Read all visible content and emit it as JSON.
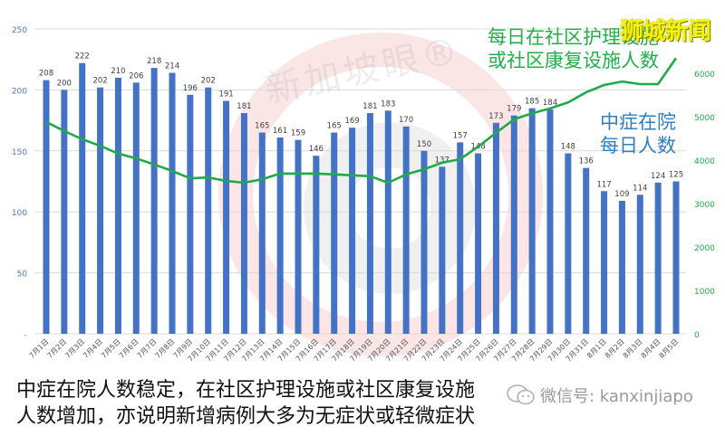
{
  "chart_data": {
    "type": "bar+line",
    "title": "",
    "categories": [
      "7月1日",
      "7月2日",
      "7月3日",
      "7月4日",
      "7月5日",
      "7月6日",
      "7月7日",
      "7月8日",
      "7月9日",
      "7月10日",
      "7月11日",
      "7月12日",
      "7月13日",
      "7月14日",
      "7月15日",
      "7月16日",
      "7月17日",
      "7月18日",
      "7月19日",
      "7月20日",
      "7月21日",
      "7月22日",
      "7月23日",
      "7月24日",
      "7月25日",
      "7月26日",
      "7月27日",
      "7月28日",
      "7月29日",
      "7月30日",
      "7月31日",
      "8月1日",
      "8月2日",
      "8月3日",
      "8月4日",
      "8月5日"
    ],
    "series": [
      {
        "name": "中症在院每日人数",
        "type": "bar",
        "axis": "left",
        "color": "#4472c4",
        "values": [
          208,
          200,
          222,
          202,
          210,
          206,
          218,
          214,
          196,
          202,
          191,
          181,
          165,
          161,
          159,
          146,
          165,
          169,
          181,
          183,
          170,
          150,
          137,
          157,
          148,
          173,
          179,
          185,
          184,
          148,
          136,
          117,
          109,
          114,
          124,
          125
        ],
        "data_labels": true
      },
      {
        "name": "每日在社区护理设施或社区康复设施人数",
        "type": "line",
        "axis": "right",
        "color": "#1faa4a",
        "values": [
          4880,
          4670,
          4480,
          4330,
          4150,
          4040,
          3900,
          3750,
          3580,
          3600,
          3520,
          3480,
          3560,
          3690,
          3690,
          3690,
          3670,
          3650,
          3630,
          3480,
          3670,
          3790,
          3940,
          4020,
          4310,
          4630,
          4940,
          5080,
          5190,
          5330,
          5560,
          5730,
          5810,
          5750,
          5750,
          6350
        ]
      }
    ],
    "left_axis": {
      "min": 0,
      "max": 250,
      "step": 50,
      "ticks": [
        "0",
        "50",
        "100",
        "150",
        "200",
        "250"
      ],
      "color": "#4a7ebb"
    },
    "right_axis": {
      "min": 0,
      "max": 7000,
      "step": 1000,
      "ticks": [
        "0",
        "1000",
        "2000",
        "3000",
        "4000",
        "5000",
        "6000"
      ],
      "color": "#1faa4a"
    },
    "grid": true,
    "legend": {
      "green_label_line1": "每日在社区护理设施",
      "green_label_line2": "或社区康复设施人数",
      "blue_label_line1": "中症在院",
      "blue_label_line2": "每日人数"
    }
  },
  "overlay": {
    "brand": "狮城新闻",
    "watermark": "新加坡眼®",
    "wechat_label": "微信号: kanxinjiapo"
  },
  "caption": {
    "line1": "中症在院人数稳定，在社区护理设施或社区康复设施",
    "line2": "人数增加，亦说明新增病例大多为无症状或轻微症状"
  }
}
